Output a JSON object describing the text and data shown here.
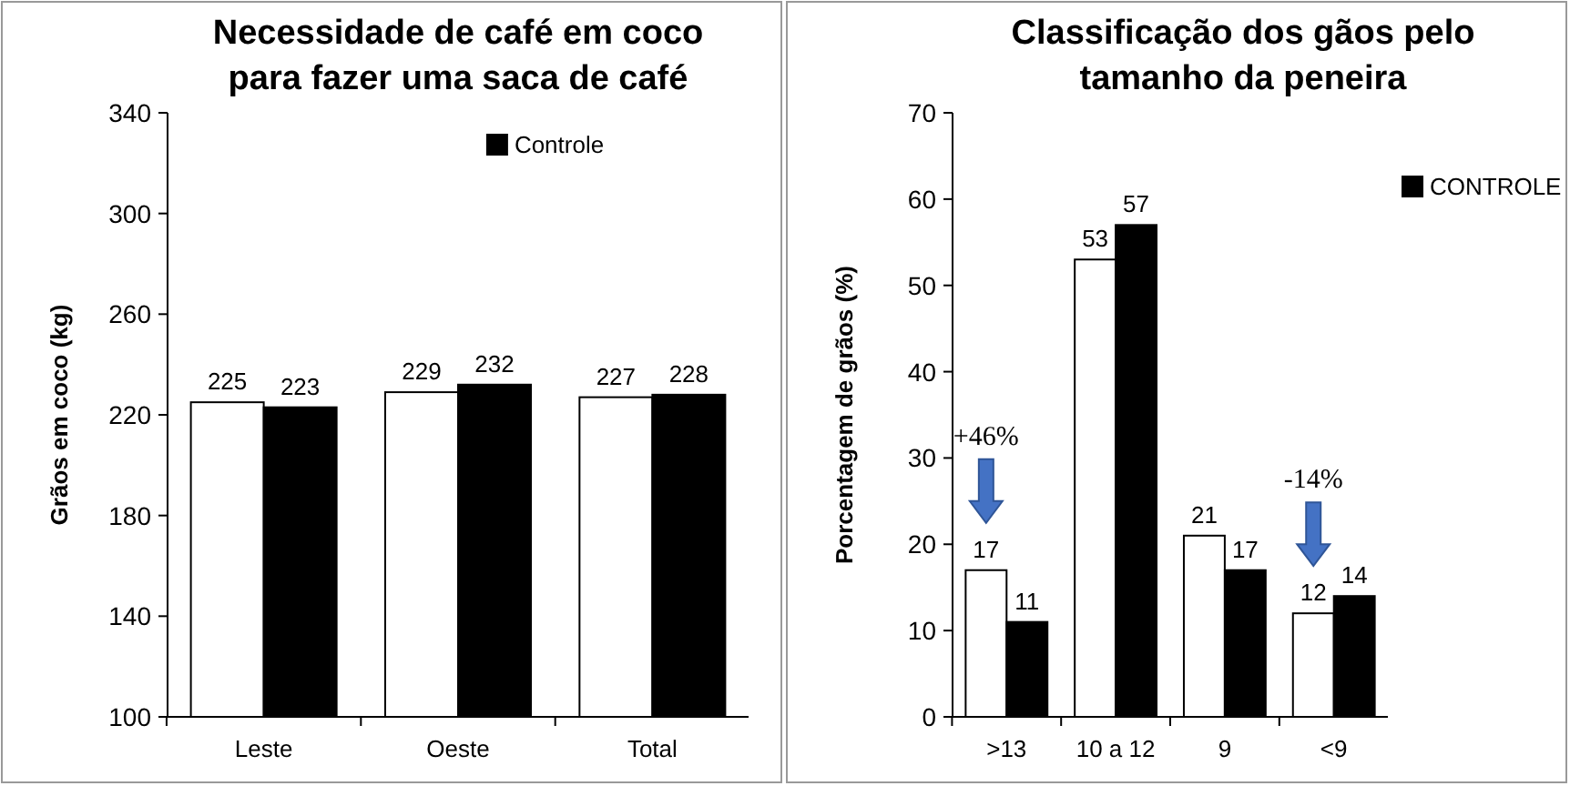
{
  "chart_data": [
    {
      "type": "bar",
      "title": "Necessidade de café em coco para fazer uma saca de café",
      "ylabel": "Grãos em coco (kg)",
      "categories": [
        "Leste",
        "Oeste",
        "Total"
      ],
      "series": [
        {
          "color": "#ffffff",
          "values": [
            225,
            229,
            227
          ]
        },
        {
          "name": "Controle",
          "color": "#000000",
          "values": [
            223,
            232,
            228
          ]
        }
      ],
      "ylim": [
        100,
        340
      ],
      "yticks": [
        100,
        140,
        180,
        220,
        260,
        300,
        340
      ],
      "data_labels": true,
      "legend": "top",
      "grid": false
    },
    {
      "type": "bar",
      "title": "Classificação dos gãos pelo tamanho da peneira",
      "ylabel": "Porcentagem de grãos (%)",
      "categories": [
        ">13",
        "10 a 12",
        "9",
        "<9"
      ],
      "series": [
        {
          "color": "#ffffff",
          "values": [
            17,
            53,
            21,
            12
          ]
        },
        {
          "name": "CONTROLE",
          "color": "#000000",
          "values": [
            11,
            57,
            17,
            14
          ]
        }
      ],
      "ylim": [
        0,
        70
      ],
      "yticks": [
        0,
        10,
        20,
        30,
        40,
        50,
        60,
        70
      ],
      "data_labels": true,
      "legend": "top right",
      "grid": false,
      "annotations": [
        "+46%",
        "-14%"
      ]
    }
  ]
}
